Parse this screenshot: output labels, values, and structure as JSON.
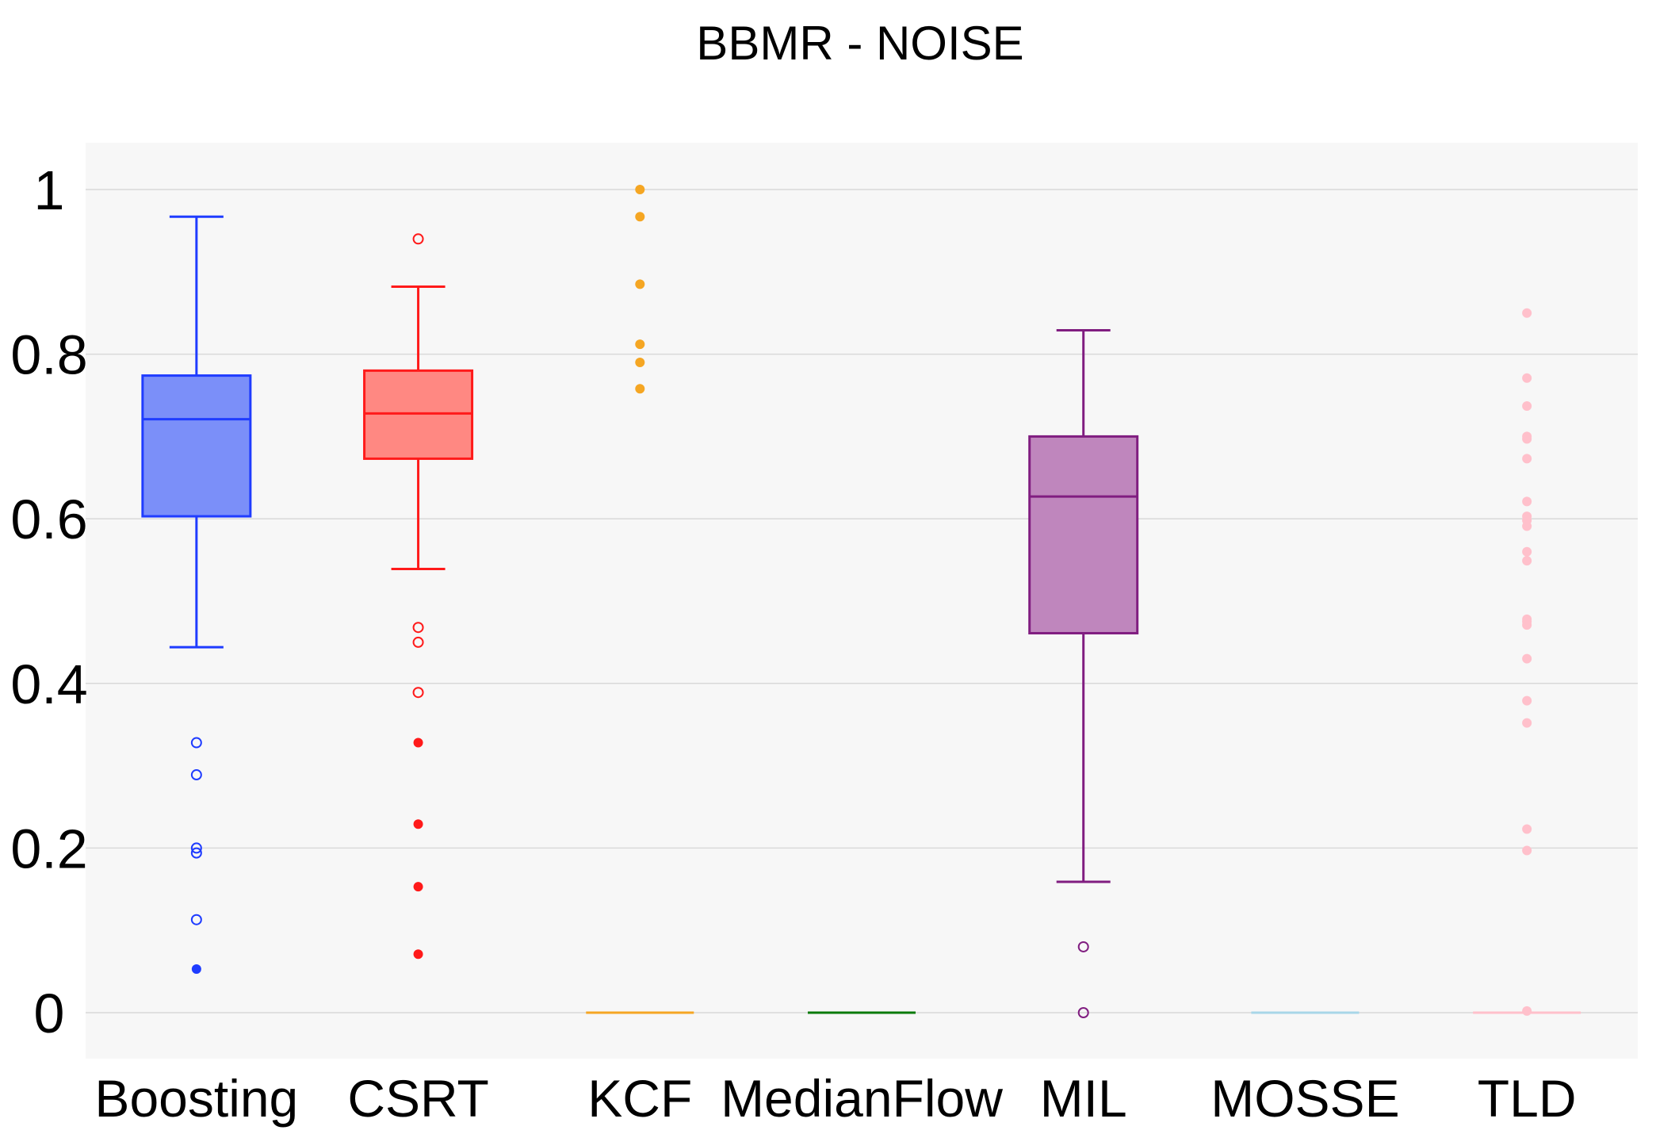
{
  "chart_data": {
    "type": "box",
    "title": "BBMR - NOISE",
    "xlabel": "",
    "ylabel": "",
    "ylim": [
      -0.055,
      1.055
    ],
    "yticks": [
      0,
      0.2,
      0.4,
      0.6,
      0.8,
      1
    ],
    "ytick_labels": [
      "0",
      "0.2",
      "0.4",
      "0.6",
      "0.8",
      "1"
    ],
    "grid": "horizontal",
    "background": "#f7f7f7",
    "categories": [
      "Boosting",
      "CSRT",
      "KCF",
      "MedianFlow",
      "MIL",
      "MOSSE",
      "TLD"
    ],
    "series": [
      {
        "category": "Boosting",
        "color": "#1f3cff",
        "fill": "#7b8ff9",
        "q1": 0.603,
        "median": 0.721,
        "q3": 0.774,
        "whisker_low": 0.444,
        "whisker_high": 0.967,
        "outliers": [
          0.328,
          0.289,
          0.2,
          0.194,
          0.113
        ],
        "suspected_outliers": [
          0.053
        ]
      },
      {
        "category": "CSRT",
        "color": "#ff1a1a",
        "fill": "#ff8882",
        "q1": 0.673,
        "median": 0.728,
        "q3": 0.78,
        "whisker_low": 0.539,
        "whisker_high": 0.882,
        "outliers": [
          0.94,
          0.468,
          0.45,
          0.389
        ],
        "suspected_outliers": [
          0.328,
          0.229,
          0.153,
          0.071
        ]
      },
      {
        "category": "KCF",
        "color": "#f5a623",
        "fill": "#f5a623",
        "q1": 0,
        "median": 0,
        "q3": 0,
        "whisker_low": 0,
        "whisker_high": 0,
        "outliers": [],
        "suspected_outliers": [
          1.0,
          0.967,
          0.885,
          0.812,
          0.79,
          0.758
        ]
      },
      {
        "category": "MedianFlow",
        "color": "#0a7a0a",
        "fill": "#0a7a0a",
        "q1": 0,
        "median": 0,
        "q3": 0,
        "whisker_low": 0,
        "whisker_high": 0,
        "outliers": [],
        "suspected_outliers": []
      },
      {
        "category": "MIL",
        "color": "#801d80",
        "fill": "#bf86bd",
        "q1": 0.461,
        "median": 0.627,
        "q3": 0.7,
        "whisker_low": 0.159,
        "whisker_high": 0.829,
        "outliers": [
          0.08,
          0.0
        ],
        "suspected_outliers": []
      },
      {
        "category": "MOSSE",
        "color": "#a8d6e8",
        "fill": "#a8d6e8",
        "q1": 0,
        "median": 0,
        "q3": 0,
        "whisker_low": 0,
        "whisker_high": 0,
        "outliers": [],
        "suspected_outliers": []
      },
      {
        "category": "TLD",
        "color": "#ffc0cb",
        "fill": "#ffc0cb",
        "q1": 0,
        "median": 0,
        "q3": 0,
        "whisker_low": 0,
        "whisker_high": 0,
        "outliers": [],
        "suspected_outliers": [
          0.85,
          0.771,
          0.737,
          0.7,
          0.697,
          0.673,
          0.621,
          0.603,
          0.598,
          0.591,
          0.56,
          0.549,
          0.478,
          0.475,
          0.471,
          0.43,
          0.379,
          0.352,
          0.223,
          0.197,
          0.002
        ]
      }
    ]
  }
}
